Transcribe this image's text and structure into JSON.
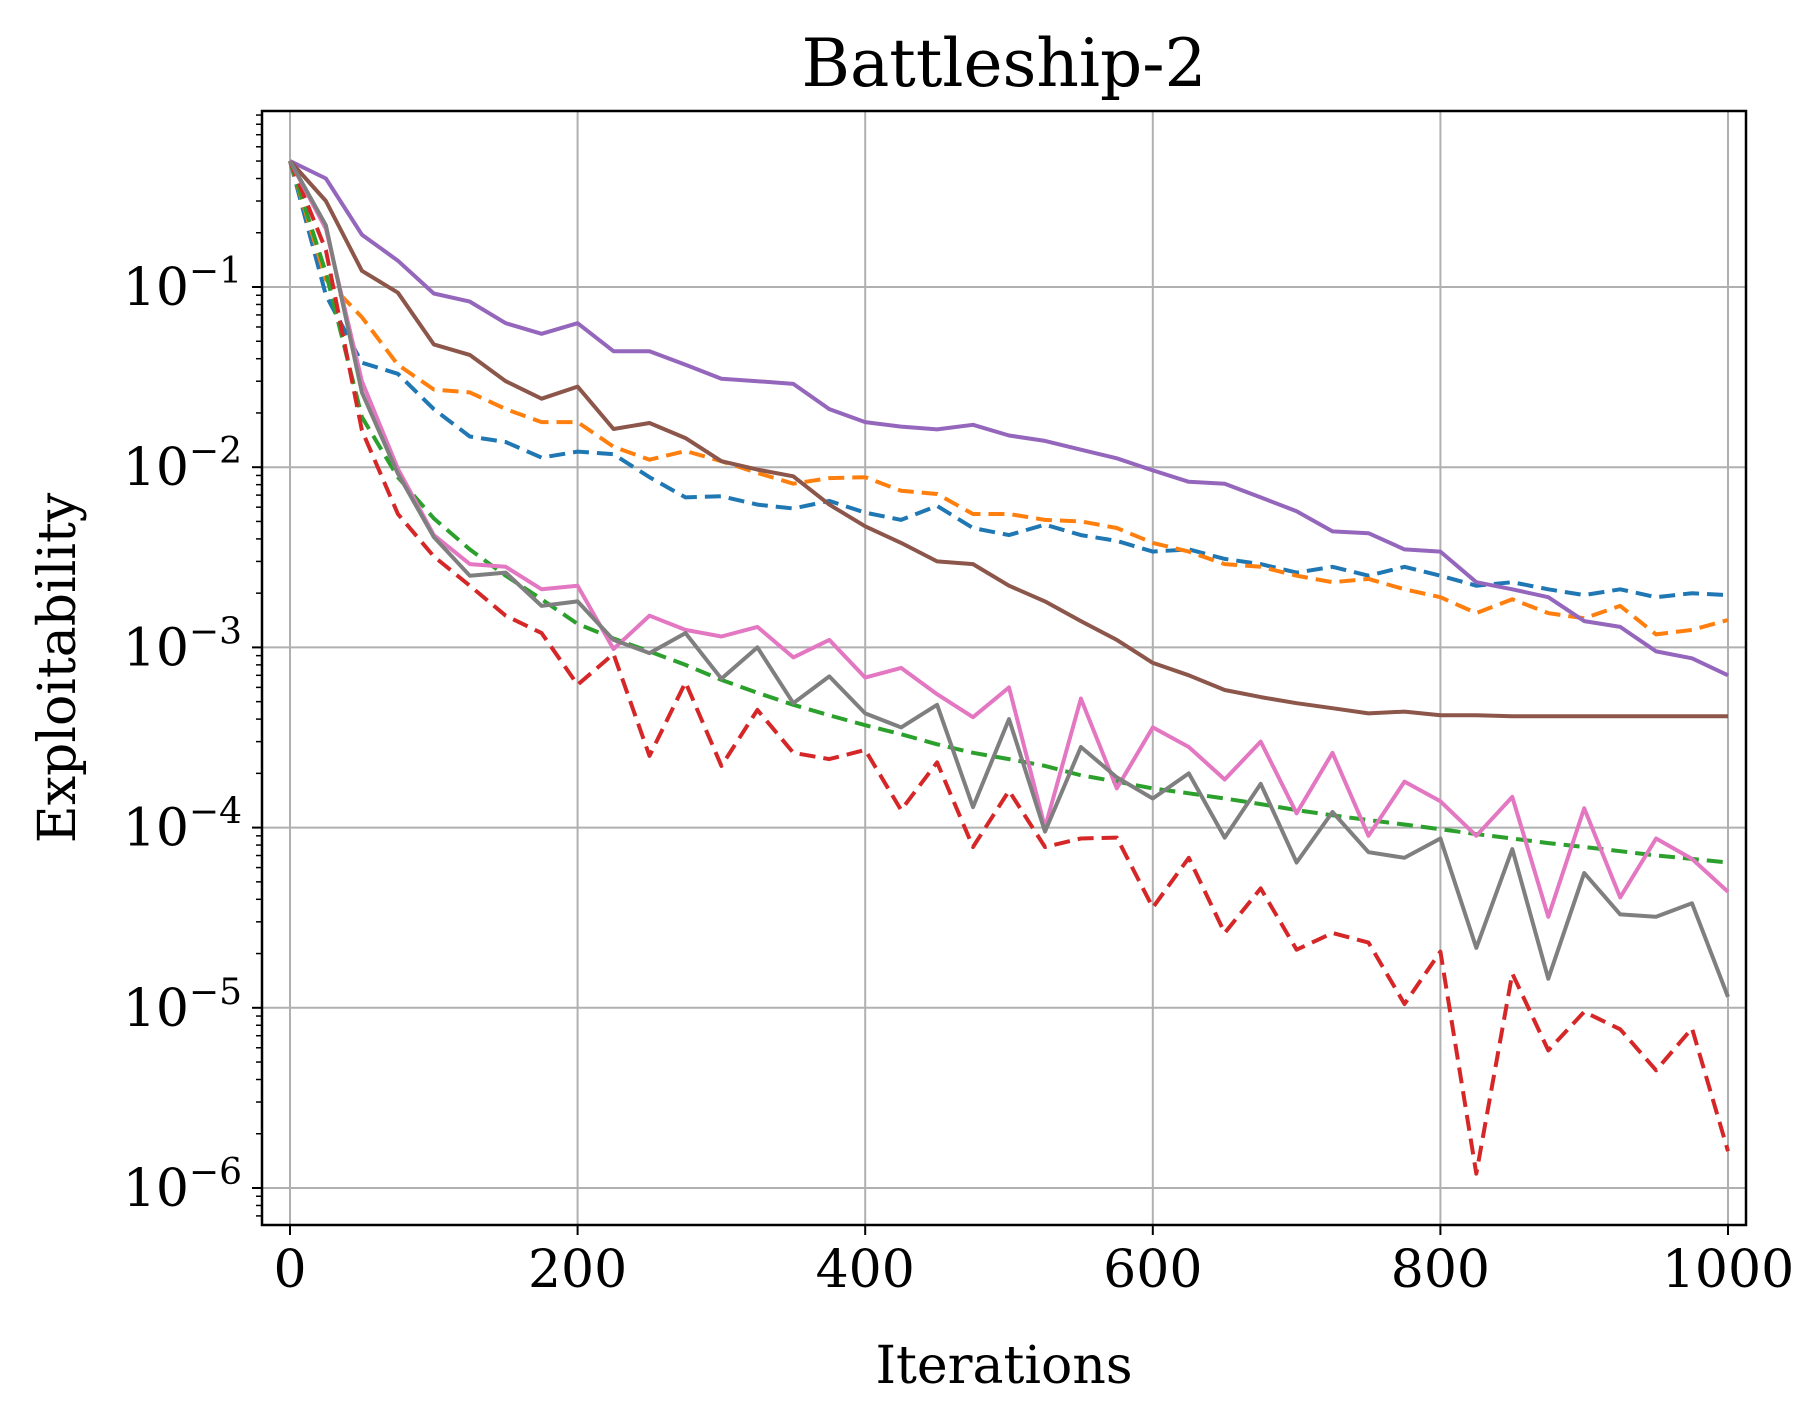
{
  "chart_data": {
    "type": "line",
    "title": "Battleship-2",
    "xlabel": "Iterations",
    "ylabel": "Exploitability",
    "yscale": "log",
    "xlim": [
      -10,
      1010
    ],
    "ylim": [
      6e-07,
      0.9
    ],
    "xticks": [
      0,
      200,
      400,
      600,
      800,
      1000
    ],
    "xtick_labels": [
      "0",
      "200",
      "400",
      "600",
      "800",
      "1000"
    ],
    "yticks": [
      1e-06,
      1e-05,
      0.0001,
      0.001,
      0.01,
      0.1
    ],
    "ytick_labels": [
      {
        "base": "10",
        "exp": "−6"
      },
      {
        "base": "10",
        "exp": "−5"
      },
      {
        "base": "10",
        "exp": "−4"
      },
      {
        "base": "10",
        "exp": "−3"
      },
      {
        "base": "10",
        "exp": "−2"
      },
      {
        "base": "10",
        "exp": "−1"
      }
    ],
    "grid": true,
    "x": [
      0,
      25,
      50,
      75,
      100,
      125,
      150,
      175,
      200,
      225,
      250,
      275,
      300,
      325,
      350,
      375,
      400,
      425,
      450,
      475,
      500,
      525,
      550,
      575,
      600,
      625,
      650,
      675,
      700,
      725,
      750,
      775,
      800,
      825,
      850,
      875,
      900,
      925,
      950,
      975,
      1000
    ],
    "series": [
      {
        "name": "blue-dashed",
        "color": "#1f77b4",
        "dash": "dashed",
        "values": [
          0.5,
          0.09,
          0.038,
          0.033,
          0.021,
          0.0148,
          0.0138,
          0.0113,
          0.0122,
          0.0118,
          0.0088,
          0.0068,
          0.0069,
          0.0062,
          0.0059,
          0.0065,
          0.0056,
          0.0051,
          0.0061,
          0.0046,
          0.0042,
          0.0048,
          0.0042,
          0.0039,
          0.0034,
          0.0035,
          0.0031,
          0.0029,
          0.0026,
          0.0028,
          0.0025,
          0.0028,
          0.0025,
          0.0022,
          0.0023,
          0.0021,
          0.00195,
          0.0021,
          0.0019,
          0.002,
          0.00195
        ]
      },
      {
        "name": "orange-dashed",
        "color": "#ff7f0e",
        "dash": "dashed",
        "values": [
          0.5,
          0.11,
          0.068,
          0.037,
          0.027,
          0.026,
          0.021,
          0.0178,
          0.0178,
          0.013,
          0.011,
          0.0123,
          0.0108,
          0.0093,
          0.0081,
          0.0087,
          0.0088,
          0.0074,
          0.0071,
          0.0055,
          0.0055,
          0.0051,
          0.005,
          0.0046,
          0.0038,
          0.0034,
          0.0029,
          0.0028,
          0.0025,
          0.0023,
          0.0024,
          0.0021,
          0.0019,
          0.00155,
          0.00185,
          0.00155,
          0.00145,
          0.0017,
          0.00118,
          0.00125,
          0.00142
        ]
      },
      {
        "name": "green-dashed",
        "color": "#2ca02c",
        "dash": "dashed",
        "values": [
          0.5,
          0.12,
          0.019,
          0.0088,
          0.0052,
          0.0035,
          0.0025,
          0.00185,
          0.00135,
          0.00112,
          0.00095,
          0.0008,
          0.00066,
          0.00056,
          0.00048,
          0.00042,
          0.00037,
          0.00033,
          0.00029,
          0.00026,
          0.00024,
          0.00022,
          0.000195,
          0.00018,
          0.000165,
          0.000155,
          0.000145,
          0.000135,
          0.000125,
          0.000117,
          0.00011,
          0.000104,
          9.8e-05,
          9.2e-05,
          8.7e-05,
          8.2e-05,
          7.8e-05,
          7.4e-05,
          7e-05,
          6.7e-05,
          6.4e-05
        ]
      },
      {
        "name": "red-dashed",
        "color": "#d62728",
        "dash": "dashed",
        "values": [
          0.5,
          0.16,
          0.016,
          0.0055,
          0.0032,
          0.0022,
          0.0015,
          0.0012,
          0.00062,
          0.00092,
          0.00025,
          0.00064,
          0.00022,
          0.00045,
          0.00026,
          0.00024,
          0.00027,
          0.000125,
          0.00023,
          7.8e-05,
          0.00016,
          7.8e-05,
          8.7e-05,
          8.8e-05,
          3.6e-05,
          6.8e-05,
          2.6e-05,
          4.6e-05,
          2.1e-05,
          2.6e-05,
          2.3e-05,
          1.05e-05,
          2.05e-05,
          1.2e-06,
          1.55e-05,
          5.8e-06,
          9.5e-06,
          7.6e-06,
          4.5e-06,
          7.7e-06,
          1.6e-06
        ]
      },
      {
        "name": "purple-solid",
        "color": "#9467bd",
        "dash": "solid",
        "values": [
          0.5,
          0.4,
          0.195,
          0.14,
          0.092,
          0.083,
          0.063,
          0.055,
          0.063,
          0.044,
          0.044,
          0.037,
          0.031,
          0.03,
          0.029,
          0.021,
          0.0178,
          0.0168,
          0.0162,
          0.0172,
          0.015,
          0.014,
          0.0125,
          0.0112,
          0.0096,
          0.0083,
          0.0081,
          0.0068,
          0.0057,
          0.0044,
          0.0043,
          0.0035,
          0.0034,
          0.0023,
          0.0021,
          0.0019,
          0.0014,
          0.0013,
          0.00095,
          0.00087,
          0.0007
        ]
      },
      {
        "name": "brown-solid",
        "color": "#8c564b",
        "dash": "solid",
        "values": [
          0.5,
          0.3,
          0.123,
          0.093,
          0.048,
          0.042,
          0.03,
          0.024,
          0.028,
          0.0163,
          0.0176,
          0.0145,
          0.0108,
          0.0097,
          0.0089,
          0.0062,
          0.0047,
          0.0038,
          0.003,
          0.0029,
          0.0022,
          0.0018,
          0.0014,
          0.0011,
          0.00082,
          0.0007,
          0.00058,
          0.00053,
          0.00049,
          0.00046,
          0.00043,
          0.00044,
          0.00042,
          0.00042,
          0.000415,
          0.000415,
          0.000415,
          0.000415,
          0.000415,
          0.000415,
          0.000415
        ]
      },
      {
        "name": "pink-solid",
        "color": "#e377c2",
        "dash": "solid",
        "values": [
          0.5,
          0.21,
          0.03,
          0.0098,
          0.0042,
          0.0029,
          0.0028,
          0.0021,
          0.0022,
          0.00098,
          0.0015,
          0.00125,
          0.00115,
          0.0013,
          0.00088,
          0.0011,
          0.00068,
          0.00077,
          0.00055,
          0.00041,
          0.0006,
          0.0001,
          0.00052,
          0.000165,
          0.00036,
          0.00028,
          0.000185,
          0.0003,
          0.00012,
          0.00026,
          9e-05,
          0.00018,
          0.00014,
          9e-05,
          0.000148,
          3.2e-05,
          0.000128,
          4.1e-05,
          8.7e-05,
          6.7e-05,
          4.4e-05
        ]
      },
      {
        "name": "gray-solid",
        "color": "#7f7f7f",
        "dash": "solid",
        "values": [
          0.5,
          0.22,
          0.026,
          0.0092,
          0.0041,
          0.0025,
          0.0026,
          0.0017,
          0.0018,
          0.0011,
          0.00093,
          0.0012,
          0.00067,
          0.001,
          0.00049,
          0.00069,
          0.00043,
          0.00036,
          0.00048,
          0.00013,
          0.0004,
          9.5e-05,
          0.00028,
          0.00019,
          0.000145,
          0.0002,
          8.8e-05,
          0.000175,
          6.4e-05,
          0.000122,
          7.3e-05,
          6.8e-05,
          8.7e-05,
          2.15e-05,
          7.6e-05,
          1.45e-05,
          5.6e-05,
          3.3e-05,
          3.2e-05,
          3.8e-05,
          1.15e-05
        ]
      }
    ]
  }
}
